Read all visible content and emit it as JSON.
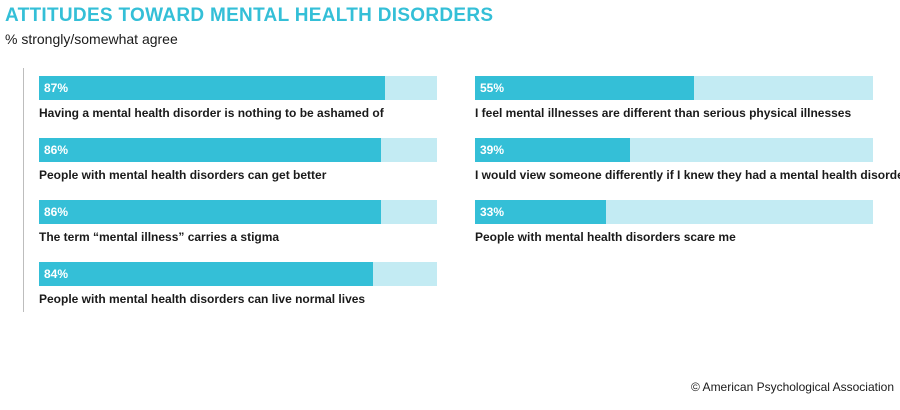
{
  "title": "ATTITUDES TOWARD MENTAL HEALTH DISORDERS",
  "subtitle": "% strongly/somewhat agree",
  "credit": "© American Psychological Association",
  "colors": {
    "accent": "#34bfd7",
    "track": "#c3ebf3"
  },
  "chart_data": {
    "type": "bar",
    "orientation": "horizontal",
    "xlim": [
      0,
      100
    ],
    "unit": "%",
    "categories": [
      "Having a mental health disorder is nothing to be ashamed of",
      "People with mental health disorders can get better",
      "The term “mental illness” carries a stigma",
      "People with mental health disorders can live normal lives",
      "I feel mental illnesses are different than serious physical illnesses",
      "I would view someone differently if I knew they had a mental health disorder",
      "People with mental health disorders scare me"
    ],
    "values": [
      87,
      86,
      86,
      84,
      55,
      39,
      33
    ],
    "value_labels": [
      "87%",
      "86%",
      "86%",
      "84%",
      "55%",
      "39%",
      "33%"
    ]
  }
}
